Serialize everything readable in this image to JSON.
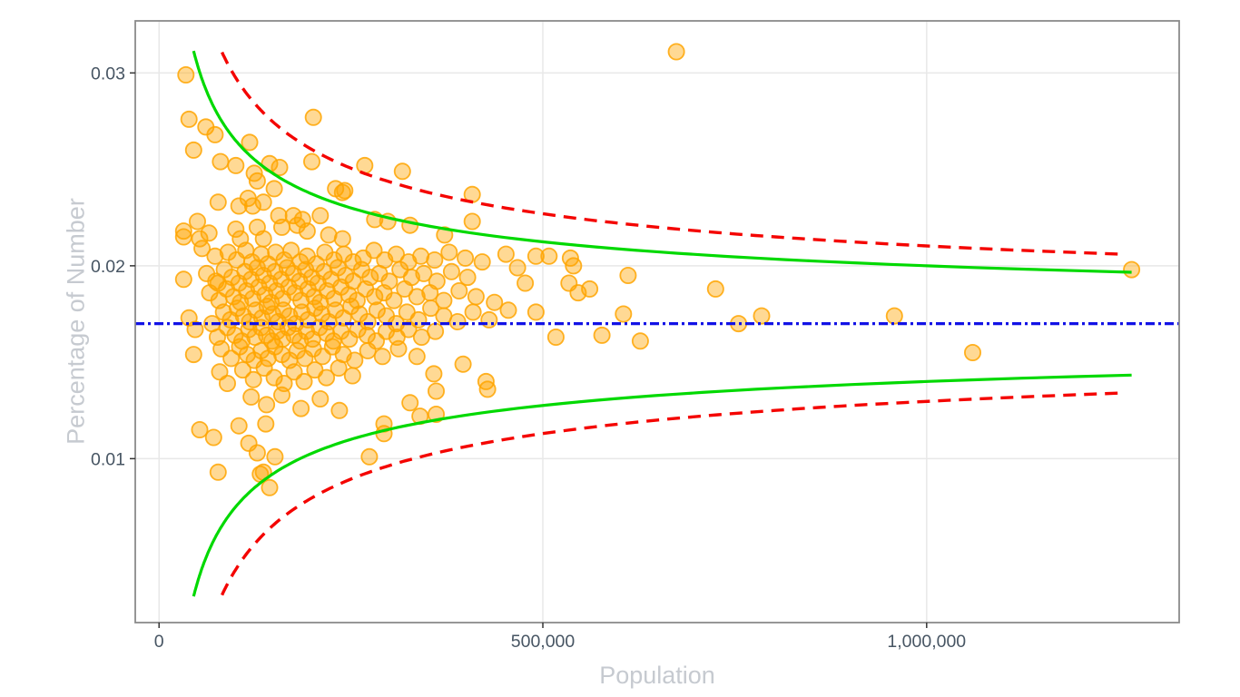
{
  "chart_data": {
    "type": "scatter",
    "title": "",
    "xlabel": "Population",
    "ylabel": "Percentage of Number",
    "xlim": [
      -31000,
      1329000
    ],
    "ylim": [
      0.0015,
      0.0327
    ],
    "grid": true,
    "legend": "none",
    "x_ticks": [
      {
        "v": 0,
        "label": "0"
      },
      {
        "v": 500000,
        "label": "500,000"
      },
      {
        "v": 1000000,
        "label": "1,000,000"
      }
    ],
    "y_ticks": [
      {
        "v": 0.01,
        "label": "0.01"
      },
      {
        "v": 0.02,
        "label": "0.02"
      },
      {
        "v": 0.03,
        "label": "0.03"
      }
    ],
    "style": {
      "panel_border_color": "#8a8a8a",
      "grid_color": "#e8e8e8",
      "tick_label_color": "#475563",
      "axis_title_color": "#c6cad0",
      "tick_mark_color": "#333333"
    },
    "mean_line": {
      "value": 0.017,
      "color": "#1212e6",
      "dash": "10 4 3 4",
      "width": 3.2
    },
    "control_limits": [
      {
        "name": "inner-control-limit",
        "color": "#00d900",
        "dash": "",
        "width": 3.2,
        "k": 3.0,
        "n_range": [
          45000,
          1267000
        ]
      },
      {
        "name": "outer-control-limit",
        "color": "#f40400",
        "dash": "14 9",
        "width": 3.4,
        "k": 4.03,
        "n_range": [
          82000,
          1253000
        ]
      }
    ],
    "point_style": {
      "color": "#FFA500",
      "fill_opacity": 0.42,
      "stroke_opacity": 0.85,
      "radius": 8.6,
      "stroke_width": 1.8
    },
    "points": [
      [
        35000,
        0.0299
      ],
      [
        39000,
        0.0276
      ],
      [
        61000,
        0.0272
      ],
      [
        73000,
        0.0268
      ],
      [
        45000,
        0.026
      ],
      [
        80000,
        0.0254
      ],
      [
        100000,
        0.0252
      ],
      [
        118000,
        0.0264
      ],
      [
        124000,
        0.0248
      ],
      [
        144000,
        0.0253
      ],
      [
        157000,
        0.0251
      ],
      [
        201000,
        0.0277
      ],
      [
        199000,
        0.0254
      ],
      [
        128000,
        0.0244
      ],
      [
        150000,
        0.024
      ],
      [
        230000,
        0.024
      ],
      [
        239000,
        0.0238
      ],
      [
        268000,
        0.0252
      ],
      [
        317000,
        0.0249
      ],
      [
        408000,
        0.0237
      ],
      [
        242000,
        0.0239
      ],
      [
        77000,
        0.0233
      ],
      [
        104000,
        0.0231
      ],
      [
        116000,
        0.0235
      ],
      [
        122000,
        0.0231
      ],
      [
        136000,
        0.0233
      ],
      [
        50000,
        0.0223
      ],
      [
        65000,
        0.0217
      ],
      [
        32000,
        0.0215
      ],
      [
        56000,
        0.0209
      ],
      [
        73000,
        0.0205
      ],
      [
        100000,
        0.0219
      ],
      [
        106000,
        0.0214
      ],
      [
        128000,
        0.022
      ],
      [
        136000,
        0.0214
      ],
      [
        156000,
        0.0226
      ],
      [
        160000,
        0.022
      ],
      [
        175000,
        0.0226
      ],
      [
        180000,
        0.0221
      ],
      [
        187000,
        0.0224
      ],
      [
        193000,
        0.0218
      ],
      [
        210000,
        0.0226
      ],
      [
        221000,
        0.0216
      ],
      [
        239000,
        0.0214
      ],
      [
        281000,
        0.0224
      ],
      [
        298000,
        0.0223
      ],
      [
        327000,
        0.0221
      ],
      [
        372000,
        0.0216
      ],
      [
        408000,
        0.0223
      ],
      [
        452000,
        0.0206
      ],
      [
        90000,
        0.0207
      ],
      [
        101000,
        0.0203
      ],
      [
        113000,
        0.0208
      ],
      [
        121000,
        0.0202
      ],
      [
        133000,
        0.0206
      ],
      [
        142000,
        0.0201
      ],
      [
        152000,
        0.0207
      ],
      [
        163000,
        0.0203
      ],
      [
        172000,
        0.0208
      ],
      [
        184000,
        0.0202
      ],
      [
        193000,
        0.0205
      ],
      [
        205000,
        0.0201
      ],
      [
        216000,
        0.0207
      ],
      [
        228000,
        0.0203
      ],
      [
        241000,
        0.0206
      ],
      [
        253000,
        0.0202
      ],
      [
        266000,
        0.0204
      ],
      [
        280000,
        0.0208
      ],
      [
        294000,
        0.0203
      ],
      [
        309000,
        0.0206
      ],
      [
        325000,
        0.0202
      ],
      [
        341000,
        0.0205
      ],
      [
        359000,
        0.0203
      ],
      [
        378000,
        0.0207
      ],
      [
        399000,
        0.0204
      ],
      [
        421000,
        0.0202
      ],
      [
        32000,
        0.0218
      ],
      [
        53000,
        0.0214
      ],
      [
        62000,
        0.0196
      ],
      [
        74000,
        0.0192
      ],
      [
        85000,
        0.0198
      ],
      [
        95000,
        0.0194
      ],
      [
        104000,
        0.0191
      ],
      [
        112000,
        0.0197
      ],
      [
        120000,
        0.0193
      ],
      [
        128000,
        0.0199
      ],
      [
        136000,
        0.0195
      ],
      [
        144000,
        0.0191
      ],
      [
        151000,
        0.0197
      ],
      [
        159000,
        0.0193
      ],
      [
        167000,
        0.0199
      ],
      [
        175000,
        0.0196
      ],
      [
        183000,
        0.0192
      ],
      [
        191000,
        0.0198
      ],
      [
        199000,
        0.0194
      ],
      [
        207000,
        0.0191
      ],
      [
        215000,
        0.0197
      ],
      [
        224000,
        0.0193
      ],
      [
        233000,
        0.0199
      ],
      [
        243000,
        0.0195
      ],
      [
        253000,
        0.0192
      ],
      [
        264000,
        0.0198
      ],
      [
        275000,
        0.0194
      ],
      [
        287000,
        0.0196
      ],
      [
        300000,
        0.0192
      ],
      [
        314000,
        0.0198
      ],
      [
        329000,
        0.0194
      ],
      [
        345000,
        0.0196
      ],
      [
        362000,
        0.0192
      ],
      [
        381000,
        0.0197
      ],
      [
        402000,
        0.0194
      ],
      [
        32000,
        0.0193
      ],
      [
        77000,
        0.0191
      ],
      [
        66000,
        0.0186
      ],
      [
        78000,
        0.0182
      ],
      [
        88000,
        0.0188
      ],
      [
        97000,
        0.0184
      ],
      [
        106000,
        0.0181
      ],
      [
        114000,
        0.0187
      ],
      [
        122000,
        0.0183
      ],
      [
        130000,
        0.0189
      ],
      [
        138000,
        0.0185
      ],
      [
        146000,
        0.0181
      ],
      [
        153000,
        0.0187
      ],
      [
        161000,
        0.0183
      ],
      [
        169000,
        0.0189
      ],
      [
        177000,
        0.0186
      ],
      [
        185000,
        0.0182
      ],
      [
        194000,
        0.0188
      ],
      [
        202000,
        0.0184
      ],
      [
        210000,
        0.0181
      ],
      [
        219000,
        0.0187
      ],
      [
        228000,
        0.0183
      ],
      [
        237000,
        0.0189
      ],
      [
        247000,
        0.0185
      ],
      [
        258000,
        0.0182
      ],
      [
        269000,
        0.0188
      ],
      [
        281000,
        0.0184
      ],
      [
        293000,
        0.0186
      ],
      [
        306000,
        0.0182
      ],
      [
        320000,
        0.0188
      ],
      [
        336000,
        0.0184
      ],
      [
        353000,
        0.0186
      ],
      [
        371000,
        0.0182
      ],
      [
        391000,
        0.0187
      ],
      [
        413000,
        0.0184
      ],
      [
        437000,
        0.0181
      ],
      [
        39000,
        0.0173
      ],
      [
        69000,
        0.017
      ],
      [
        84000,
        0.0176
      ],
      [
        93000,
        0.0172
      ],
      [
        102000,
        0.0178
      ],
      [
        110000,
        0.0174
      ],
      [
        118000,
        0.0171
      ],
      [
        126000,
        0.0177
      ],
      [
        134000,
        0.0173
      ],
      [
        141000,
        0.0179
      ],
      [
        148000,
        0.0175
      ],
      [
        155000,
        0.0171
      ],
      [
        162000,
        0.0177
      ],
      [
        170000,
        0.0174
      ],
      [
        178000,
        0.017
      ],
      [
        186000,
        0.0176
      ],
      [
        194000,
        0.0172
      ],
      [
        203000,
        0.0178
      ],
      [
        212000,
        0.0175
      ],
      [
        221000,
        0.0171
      ],
      [
        230000,
        0.0177
      ],
      [
        240000,
        0.0173
      ],
      [
        250000,
        0.0179
      ],
      [
        261000,
        0.0175
      ],
      [
        272000,
        0.0171
      ],
      [
        284000,
        0.0177
      ],
      [
        296000,
        0.0174
      ],
      [
        309000,
        0.017
      ],
      [
        323000,
        0.0176
      ],
      [
        338000,
        0.0172
      ],
      [
        354000,
        0.0178
      ],
      [
        371000,
        0.0174
      ],
      [
        389000,
        0.0171
      ],
      [
        409000,
        0.0176
      ],
      [
        430000,
        0.0172
      ],
      [
        47000,
        0.0167
      ],
      [
        76000,
        0.0163
      ],
      [
        89000,
        0.0168
      ],
      [
        99000,
        0.0164
      ],
      [
        108000,
        0.0161
      ],
      [
        117000,
        0.0167
      ],
      [
        125000,
        0.0163
      ],
      [
        133000,
        0.0168
      ],
      [
        140000,
        0.0164
      ],
      [
        147000,
        0.0161
      ],
      [
        154000,
        0.0166
      ],
      [
        161000,
        0.0162
      ],
      [
        168000,
        0.0168
      ],
      [
        176000,
        0.0164
      ],
      [
        184000,
        0.0161
      ],
      [
        192000,
        0.0166
      ],
      [
        200000,
        0.0162
      ],
      [
        209000,
        0.0168
      ],
      [
        218000,
        0.0165
      ],
      [
        227000,
        0.0161
      ],
      [
        237000,
        0.0166
      ],
      [
        248000,
        0.0162
      ],
      [
        259000,
        0.0167
      ],
      [
        271000,
        0.0164
      ],
      [
        283000,
        0.0161
      ],
      [
        296000,
        0.0166
      ],
      [
        310000,
        0.0163
      ],
      [
        325000,
        0.0167
      ],
      [
        342000,
        0.0163
      ],
      [
        360000,
        0.0166
      ],
      [
        45000,
        0.0154
      ],
      [
        81000,
        0.0157
      ],
      [
        94000,
        0.0152
      ],
      [
        105000,
        0.0158
      ],
      [
        115000,
        0.0154
      ],
      [
        124000,
        0.0151
      ],
      [
        133000,
        0.0156
      ],
      [
        142000,
        0.0152
      ],
      [
        151000,
        0.0158
      ],
      [
        160000,
        0.0154
      ],
      [
        170000,
        0.0151
      ],
      [
        180000,
        0.0156
      ],
      [
        190000,
        0.0152
      ],
      [
        201000,
        0.0157
      ],
      [
        213000,
        0.0153
      ],
      [
        226000,
        0.0158
      ],
      [
        240000,
        0.0154
      ],
      [
        255000,
        0.0151
      ],
      [
        272000,
        0.0156
      ],
      [
        291000,
        0.0153
      ],
      [
        312000,
        0.0157
      ],
      [
        336000,
        0.0153
      ],
      [
        79000,
        0.0145
      ],
      [
        89000,
        0.0139
      ],
      [
        109000,
        0.0146
      ],
      [
        123000,
        0.0141
      ],
      [
        137000,
        0.0147
      ],
      [
        150000,
        0.0142
      ],
      [
        163000,
        0.0139
      ],
      [
        176000,
        0.0145
      ],
      [
        189000,
        0.014
      ],
      [
        203000,
        0.0146
      ],
      [
        218000,
        0.0142
      ],
      [
        234000,
        0.0147
      ],
      [
        252000,
        0.0143
      ],
      [
        358000,
        0.0144
      ],
      [
        396000,
        0.0149
      ],
      [
        426000,
        0.014
      ],
      [
        361000,
        0.0135
      ],
      [
        428000,
        0.0136
      ],
      [
        327000,
        0.0129
      ],
      [
        340000,
        0.0122
      ],
      [
        361000,
        0.0123
      ],
      [
        293000,
        0.0118
      ],
      [
        293000,
        0.0113
      ],
      [
        120000,
        0.0132
      ],
      [
        140000,
        0.0128
      ],
      [
        160000,
        0.0133
      ],
      [
        185000,
        0.0126
      ],
      [
        210000,
        0.0131
      ],
      [
        235000,
        0.0125
      ],
      [
        53000,
        0.0115
      ],
      [
        71000,
        0.0111
      ],
      [
        104000,
        0.0117
      ],
      [
        139000,
        0.0118
      ],
      [
        128000,
        0.0103
      ],
      [
        151000,
        0.0101
      ],
      [
        274000,
        0.0101
      ],
      [
        132000,
        0.0092
      ],
      [
        144000,
        0.0085
      ],
      [
        136000,
        0.0093
      ],
      [
        77000,
        0.0093
      ],
      [
        117000,
        0.0108
      ],
      [
        467000,
        0.0199
      ],
      [
        477000,
        0.0191
      ],
      [
        491000,
        0.0205
      ],
      [
        508000,
        0.0205
      ],
      [
        536000,
        0.0204
      ],
      [
        540000,
        0.02
      ],
      [
        534000,
        0.0191
      ],
      [
        546000,
        0.0186
      ],
      [
        561000,
        0.0188
      ],
      [
        611000,
        0.0195
      ],
      [
        725000,
        0.0188
      ],
      [
        455000,
        0.0177
      ],
      [
        491000,
        0.0176
      ],
      [
        605000,
        0.0175
      ],
      [
        517000,
        0.0163
      ],
      [
        577000,
        0.0164
      ],
      [
        627000,
        0.0161
      ],
      [
        755000,
        0.017
      ],
      [
        785000,
        0.0174
      ],
      [
        958000,
        0.0174
      ],
      [
        1060000,
        0.0155
      ],
      [
        1267000,
        0.0198
      ],
      [
        674000,
        0.0311
      ]
    ]
  }
}
